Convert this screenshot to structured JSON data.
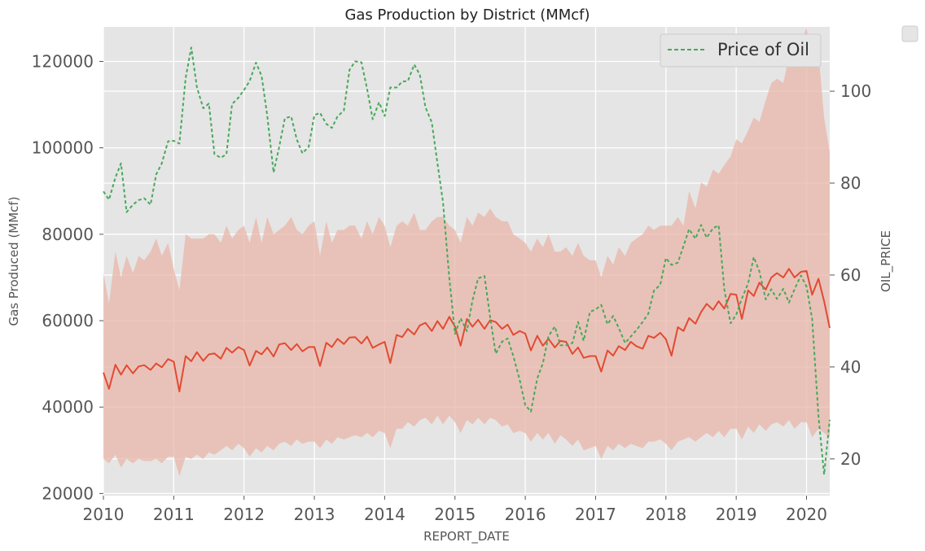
{
  "chart_data": {
    "type": "line",
    "title": "Gas Production by District (MMcf)",
    "xlabel": "REPORT_DATE",
    "ylabel_left": "Gas Produced (MMcf)",
    "ylabel_right": "OIL_PRICE",
    "x_range": [
      2010.0,
      2020.33
    ],
    "y_left_range": [
      19500,
      128000
    ],
    "y_right_range": [
      12,
      114
    ],
    "x_ticks": [
      "2010",
      "2011",
      "2012",
      "2013",
      "2014",
      "2015",
      "2016",
      "2017",
      "2018",
      "2019",
      "2020"
    ],
    "y_left_ticks": [
      "20000",
      "40000",
      "60000",
      "80000",
      "100000",
      "120000"
    ],
    "y_right_ticks": [
      "20",
      "40",
      "60",
      "80",
      "100"
    ],
    "grid": true,
    "legend": {
      "position": "top-right",
      "entries": [
        "Price of Oil"
      ]
    },
    "colors": {
      "production": "#e24a33",
      "band": "#e8b5a8",
      "oil": "#48a85a",
      "plot_bg": "#e5e5e5",
      "grid": "#ffffff"
    },
    "series": [
      {
        "series_type": "line",
        "axis": "left",
        "x": [
          2010.0,
          2010.08,
          2010.17,
          2010.25,
          2010.33,
          2010.42,
          2010.5,
          2010.58,
          2010.67,
          2010.75,
          2010.83,
          2010.92,
          2011.0,
          2011.08,
          2011.17,
          2011.25,
          2011.33,
          2011.42,
          2011.5,
          2011.58,
          2011.67,
          2011.75,
          2011.83,
          2011.92,
          2012.0,
          2012.08,
          2012.17,
          2012.25,
          2012.33,
          2012.42,
          2012.5,
          2012.58,
          2012.67,
          2012.75,
          2012.83,
          2012.92,
          2013.0,
          2013.08,
          2013.17,
          2013.25,
          2013.33,
          2013.42,
          2013.5,
          2013.58,
          2013.67,
          2013.75,
          2013.83,
          2013.92,
          2014.0,
          2014.08,
          2014.17,
          2014.25,
          2014.33,
          2014.42,
          2014.5,
          2014.58,
          2014.67,
          2014.75,
          2014.83,
          2014.92,
          2015.0,
          2015.08,
          2015.17,
          2015.25,
          2015.33,
          2015.42,
          2015.5,
          2015.58,
          2015.67,
          2015.75,
          2015.83,
          2015.92,
          2016.0,
          2016.08,
          2016.17,
          2016.25,
          2016.33,
          2016.42,
          2016.5,
          2016.58,
          2016.67,
          2016.75,
          2016.83,
          2016.92,
          2017.0,
          2017.08,
          2017.17,
          2017.25,
          2017.33,
          2017.42,
          2017.5,
          2017.58,
          2017.67,
          2017.75,
          2017.83,
          2017.92,
          2018.0,
          2018.08,
          2018.17,
          2018.25,
          2018.33,
          2018.42,
          2018.5,
          2018.58,
          2018.67,
          2018.75,
          2018.83,
          2018.92,
          2019.0,
          2019.08,
          2019.17,
          2019.25,
          2019.33,
          2019.42,
          2019.5,
          2019.58,
          2019.67,
          2019.75,
          2019.83,
          2019.92,
          2020.0,
          2020.08,
          2020.17,
          2020.25,
          2020.33
        ],
        "y": [
          48000,
          44200,
          49800,
          47500,
          49700,
          47800,
          49400,
          49700,
          48600,
          50100,
          49200,
          51100,
          50500,
          43600,
          51800,
          50600,
          52700,
          50700,
          52200,
          52400,
          51200,
          53700,
          52600,
          53900,
          53200,
          49600,
          53000,
          52200,
          53800,
          51700,
          54500,
          54800,
          53200,
          54600,
          52900,
          53900,
          53900,
          49500,
          54900,
          53900,
          55800,
          54600,
          56100,
          56200,
          54700,
          56300,
          53700,
          54500,
          55100,
          50200,
          56700,
          56200,
          58100,
          56800,
          58900,
          59500,
          57600,
          59900,
          58100,
          60900,
          58600,
          54200,
          60400,
          58600,
          60200,
          58100,
          60100,
          59700,
          58100,
          59100,
          56700,
          57600,
          57000,
          53100,
          56500,
          54200,
          55800,
          53800,
          55300,
          55100,
          52300,
          53800,
          51400,
          51800,
          51800,
          48200,
          53100,
          51900,
          54100,
          53200,
          55100,
          54100,
          53500,
          56500,
          56000,
          57200,
          55700,
          51900,
          58500,
          57600,
          60600,
          59300,
          62000,
          63900,
          62500,
          64500,
          62800,
          66200,
          66000,
          60400,
          67000,
          65700,
          68800,
          67200,
          70000,
          71000,
          70000,
          72000,
          70000,
          71300,
          71500,
          66000,
          69700,
          64500,
          58300
        ]
      },
      {
        "series_type": "band",
        "axis": "left",
        "x": [
          2010.0,
          2010.08,
          2010.17,
          2010.25,
          2010.33,
          2010.42,
          2010.5,
          2010.58,
          2010.67,
          2010.75,
          2010.83,
          2010.92,
          2011.0,
          2011.08,
          2011.17,
          2011.25,
          2011.33,
          2011.42,
          2011.5,
          2011.58,
          2011.67,
          2011.75,
          2011.83,
          2011.92,
          2012.0,
          2012.08,
          2012.17,
          2012.25,
          2012.33,
          2012.42,
          2012.5,
          2012.58,
          2012.67,
          2012.75,
          2012.83,
          2012.92,
          2013.0,
          2013.08,
          2013.17,
          2013.25,
          2013.33,
          2013.42,
          2013.5,
          2013.58,
          2013.67,
          2013.75,
          2013.83,
          2013.92,
          2014.0,
          2014.08,
          2014.17,
          2014.25,
          2014.33,
          2014.42,
          2014.5,
          2014.58,
          2014.67,
          2014.75,
          2014.83,
          2014.92,
          2015.0,
          2015.08,
          2015.17,
          2015.25,
          2015.33,
          2015.42,
          2015.5,
          2015.58,
          2015.67,
          2015.75,
          2015.83,
          2015.92,
          2016.0,
          2016.08,
          2016.17,
          2016.25,
          2016.33,
          2016.42,
          2016.5,
          2016.58,
          2016.67,
          2016.75,
          2016.83,
          2016.92,
          2017.0,
          2017.08,
          2017.17,
          2017.25,
          2017.33,
          2017.42,
          2017.5,
          2017.58,
          2017.67,
          2017.75,
          2017.83,
          2017.92,
          2018.0,
          2018.08,
          2018.17,
          2018.25,
          2018.33,
          2018.42,
          2018.5,
          2018.58,
          2018.67,
          2018.75,
          2018.83,
          2018.92,
          2019.0,
          2019.08,
          2019.17,
          2019.25,
          2019.33,
          2019.42,
          2019.5,
          2019.58,
          2019.67,
          2019.75,
          2019.83,
          2019.92,
          2020.0,
          2020.08,
          2020.17,
          2020.25,
          2020.33
        ],
        "upper": [
          71000,
          64000,
          76000,
          70000,
          75000,
          71000,
          75000,
          74000,
          76000,
          79000,
          75000,
          78000,
          72000,
          67000,
          80000,
          79000,
          79000,
          79000,
          80000,
          80000,
          78000,
          82000,
          79000,
          81000,
          82000,
          78000,
          84000,
          78000,
          84000,
          80000,
          81000,
          82000,
          84000,
          81000,
          80000,
          82000,
          83000,
          75000,
          83000,
          78000,
          81000,
          81000,
          82000,
          82000,
          79000,
          83000,
          80000,
          84000,
          82000,
          77000,
          82000,
          83000,
          82000,
          85000,
          81000,
          81000,
          83000,
          84000,
          84000,
          82000,
          81000,
          78000,
          84000,
          82000,
          85000,
          84000,
          86000,
          84000,
          83000,
          83000,
          80000,
          79000,
          78000,
          76000,
          79000,
          77000,
          80000,
          76000,
          76000,
          77000,
          75000,
          78000,
          75000,
          74000,
          74000,
          70000,
          75000,
          73000,
          77000,
          75000,
          78000,
          79000,
          80000,
          82000,
          81000,
          82000,
          82000,
          82000,
          84000,
          82000,
          90000,
          86000,
          92000,
          91000,
          95000,
          94000,
          96000,
          98000,
          102000,
          101000,
          104000,
          107000,
          106000,
          111000,
          115000,
          116000,
          115000,
          121000,
          122000,
          124000,
          128000,
          120000,
          122000,
          107000,
          99000
        ],
        "lower": [
          28000,
          27000,
          29000,
          26000,
          28000,
          27000,
          28000,
          27500,
          27500,
          28000,
          27000,
          28500,
          28500,
          24000,
          28500,
          28000,
          29000,
          28000,
          29500,
          29000,
          30000,
          31000,
          30000,
          31500,
          30500,
          28500,
          30500,
          29500,
          31000,
          30000,
          31500,
          32000,
          31000,
          32500,
          31500,
          32000,
          32000,
          30500,
          32500,
          31500,
          33000,
          32500,
          33000,
          33500,
          33000,
          34000,
          33000,
          34500,
          34000,
          30500,
          35000,
          35000,
          36500,
          35500,
          37000,
          37500,
          36000,
          38000,
          36000,
          38000,
          36500,
          34000,
          37000,
          36000,
          37500,
          36000,
          37500,
          37000,
          35500,
          36000,
          34000,
          34500,
          34000,
          32000,
          34000,
          32500,
          34000,
          31500,
          33500,
          32500,
          31000,
          32500,
          30000,
          30500,
          31000,
          28000,
          31000,
          30000,
          31500,
          30500,
          31500,
          31000,
          30500,
          32000,
          32000,
          32500,
          31500,
          30000,
          32000,
          32500,
          33000,
          32000,
          33000,
          34000,
          33000,
          34500,
          33000,
          35000,
          35000,
          32500,
          35500,
          34000,
          36000,
          34500,
          36000,
          36500,
          35500,
          37000,
          35000,
          36500,
          36500,
          33000,
          35000,
          34000,
          33000
        ]
      },
      {
        "series_type": "line",
        "axis": "right",
        "name": "Price of Oil",
        "style": "dashed",
        "x": [
          2010.0,
          2010.08,
          2010.17,
          2010.25,
          2010.33,
          2010.42,
          2010.5,
          2010.58,
          2010.67,
          2010.75,
          2010.83,
          2010.92,
          2011.0,
          2011.08,
          2011.17,
          2011.25,
          2011.33,
          2011.42,
          2011.5,
          2011.58,
          2011.67,
          2011.75,
          2011.83,
          2011.92,
          2012.0,
          2012.08,
          2012.17,
          2012.25,
          2012.33,
          2012.42,
          2012.5,
          2012.58,
          2012.67,
          2012.75,
          2012.83,
          2012.92,
          2013.0,
          2013.08,
          2013.17,
          2013.25,
          2013.33,
          2013.42,
          2013.5,
          2013.58,
          2013.67,
          2013.75,
          2013.83,
          2013.92,
          2014.0,
          2014.08,
          2014.17,
          2014.25,
          2014.33,
          2014.42,
          2014.5,
          2014.58,
          2014.67,
          2014.75,
          2014.83,
          2014.92,
          2015.0,
          2015.08,
          2015.17,
          2015.25,
          2015.33,
          2015.42,
          2015.5,
          2015.58,
          2015.67,
          2015.75,
          2015.83,
          2015.92,
          2016.0,
          2016.08,
          2016.17,
          2016.25,
          2016.33,
          2016.42,
          2016.5,
          2016.58,
          2016.67,
          2016.75,
          2016.83,
          2016.92,
          2017.0,
          2017.08,
          2017.17,
          2017.25,
          2017.33,
          2017.42,
          2017.5,
          2017.58,
          2017.67,
          2017.75,
          2017.83,
          2017.92,
          2018.0,
          2018.08,
          2018.17,
          2018.25,
          2018.33,
          2018.42,
          2018.5,
          2018.58,
          2018.67,
          2018.75,
          2018.83,
          2018.92,
          2019.0,
          2019.08,
          2019.17,
          2019.25,
          2019.33,
          2019.42,
          2019.5,
          2019.58,
          2019.67,
          2019.75,
          2019.83,
          2019.92,
          2020.0,
          2020.08,
          2020.17,
          2020.25,
          2020.33
        ],
        "y": [
          78.2,
          76.4,
          81.2,
          84.3,
          73.7,
          75.3,
          76.3,
          76.7,
          75.3,
          81.9,
          84.3,
          89.1,
          89.2,
          88.6,
          102.9,
          109.5,
          100.9,
          96.3,
          97.3,
          86.3,
          85.5,
          86.3,
          97.2,
          98.6,
          100.3,
          102.2,
          106.2,
          103.3,
          94.7,
          82.3,
          87.9,
          94.1,
          94.5,
          89.5,
          86.5,
          87.9,
          94.8,
          95.3,
          92.9,
          92.0,
          94.5,
          95.8,
          104.6,
          106.5,
          106.3,
          100.5,
          93.9,
          97.6,
          94.6,
          100.8,
          100.8,
          102.1,
          102.2,
          105.8,
          103.6,
          96.5,
          93.2,
          84.4,
          75.8,
          59.3,
          47.2,
          50.6,
          47.8,
          54.5,
          59.3,
          59.8,
          50.9,
          42.9,
          45.5,
          46.2,
          42.4,
          37.2,
          31.7,
          30.3,
          37.5,
          40.8,
          46.7,
          48.8,
          44.7,
          44.7,
          45.2,
          49.8,
          45.7,
          52.0,
          52.5,
          53.5,
          49.3,
          51.1,
          48.5,
          45.2,
          46.6,
          48.0,
          49.8,
          51.6,
          56.6,
          57.9,
          63.7,
          62.2,
          62.7,
          66.3,
          70.0,
          67.9,
          70.9,
          68.1,
          70.2,
          70.8,
          56.9,
          49.5,
          51.4,
          54.9,
          58.2,
          63.9,
          60.8,
          54.7,
          56.9,
          54.8,
          57.0,
          54.0,
          56.9,
          59.9,
          57.5,
          50.5,
          29.2,
          16.6,
          28.5
        ]
      }
    ]
  }
}
